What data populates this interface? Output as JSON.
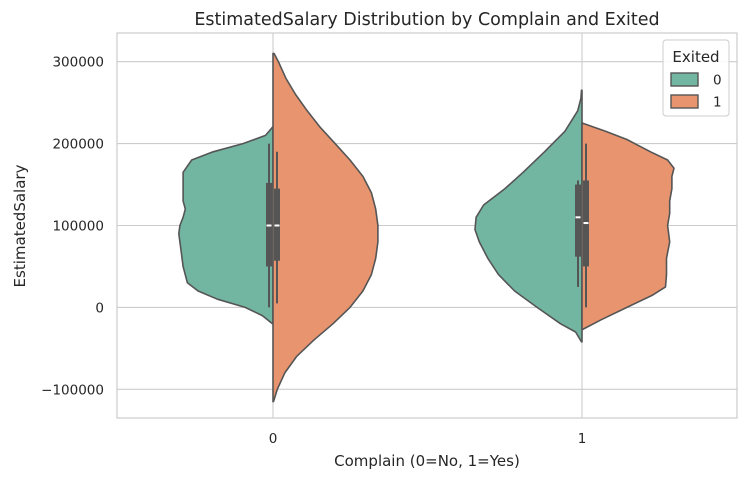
{
  "chart_data": {
    "type": "violin",
    "title": "EstimatedSalary Distribution by Complain and Exited",
    "xlabel": "Complain (0=No, 1=Yes)",
    "ylabel": "EstimatedSalary",
    "categories": [
      "0",
      "1"
    ],
    "ylim": [
      -135000,
      335000
    ],
    "yticks": [
      -100000,
      0,
      100000,
      200000,
      300000
    ],
    "ytick_labels": [
      "−100000",
      "0",
      "100000",
      "200000",
      "300000"
    ],
    "grid": true,
    "legend": {
      "title": "Exited",
      "placement": "top-right",
      "entries": [
        "0",
        "1"
      ]
    },
    "split": true,
    "series": [
      {
        "name": "0",
        "color": "#72b6a1",
        "side": "left",
        "violins": [
          {
            "category": "0",
            "y_min": -20000,
            "y_max": 220000,
            "profile": [
              [
                -20000,
                0.005
              ],
              [
                -10000,
                0.1
              ],
              [
                0,
                0.26
              ],
              [
                10000,
                0.52
              ],
              [
                20000,
                0.7
              ],
              [
                30000,
                0.8
              ],
              [
                50000,
                0.84
              ],
              [
                70000,
                0.86
              ],
              [
                90000,
                0.88
              ],
              [
                100000,
                0.87
              ],
              [
                110000,
                0.84
              ],
              [
                120000,
                0.82
              ],
              [
                130000,
                0.84
              ],
              [
                150000,
                0.84
              ],
              [
                165000,
                0.84
              ],
              [
                180000,
                0.76
              ],
              [
                190000,
                0.56
              ],
              [
                200000,
                0.28
              ],
              [
                210000,
                0.07
              ],
              [
                220000,
                0.005
              ]
            ],
            "box": {
              "q1": 50000,
              "median": 100000,
              "q3": 152000,
              "whisker_low": 0,
              "whisker_high": 200000
            }
          },
          {
            "category": "1",
            "y_min": -42000,
            "y_max": 265000,
            "profile": [
              [
                -42000,
                0.005
              ],
              [
                -30000,
                0.06
              ],
              [
                -20000,
                0.2
              ],
              [
                0,
                0.42
              ],
              [
                20000,
                0.63
              ],
              [
                40000,
                0.78
              ],
              [
                60000,
                0.88
              ],
              [
                80000,
                0.96
              ],
              [
                95000,
                1.0
              ],
              [
                110000,
                0.99
              ],
              [
                125000,
                0.92
              ],
              [
                145000,
                0.72
              ],
              [
                165000,
                0.55
              ],
              [
                190000,
                0.35
              ],
              [
                215000,
                0.16
              ],
              [
                240000,
                0.04
              ],
              [
                255000,
                0.01
              ],
              [
                265000,
                0.005
              ]
            ],
            "box": {
              "q1": 62000,
              "median": 110000,
              "q3": 150000,
              "whisker_low": 25000,
              "whisker_high": 155000
            }
          }
        ]
      },
      {
        "name": "1",
        "color": "#e8956f",
        "side": "right",
        "violins": [
          {
            "category": "0",
            "y_min": -115000,
            "y_max": 310000,
            "profile": [
              [
                -115000,
                0.005
              ],
              [
                -100000,
                0.04
              ],
              [
                -80000,
                0.11
              ],
              [
                -60000,
                0.22
              ],
              [
                -40000,
                0.38
              ],
              [
                -20000,
                0.56
              ],
              [
                0,
                0.72
              ],
              [
                20000,
                0.84
              ],
              [
                40000,
                0.92
              ],
              [
                60000,
                0.96
              ],
              [
                80000,
                0.98
              ],
              [
                100000,
                0.98
              ],
              [
                120000,
                0.96
              ],
              [
                140000,
                0.92
              ],
              [
                160000,
                0.84
              ],
              [
                180000,
                0.72
              ],
              [
                200000,
                0.58
              ],
              [
                220000,
                0.44
              ],
              [
                240000,
                0.32
              ],
              [
                260000,
                0.21
              ],
              [
                280000,
                0.12
              ],
              [
                300000,
                0.05
              ],
              [
                310000,
                0.01
              ]
            ],
            "box": {
              "q1": 57000,
              "median": 100000,
              "q3": 145000,
              "whisker_low": 5000,
              "whisker_high": 190000
            }
          },
          {
            "category": "1",
            "y_min": -27000,
            "y_max": 225000,
            "profile": [
              [
                -27000,
                0.005
              ],
              [
                -15000,
                0.18
              ],
              [
                0,
                0.42
              ],
              [
                15000,
                0.66
              ],
              [
                25000,
                0.78
              ],
              [
                40000,
                0.79
              ],
              [
                60000,
                0.79
              ],
              [
                80000,
                0.82
              ],
              [
                100000,
                0.8
              ],
              [
                115000,
                0.82
              ],
              [
                130000,
                0.82
              ],
              [
                145000,
                0.84
              ],
              [
                160000,
                0.84
              ],
              [
                170000,
                0.86
              ],
              [
                180000,
                0.8
              ],
              [
                190000,
                0.64
              ],
              [
                205000,
                0.42
              ],
              [
                215000,
                0.22
              ],
              [
                225000,
                0.005
              ]
            ],
            "box": {
              "q1": 50000,
              "median": 103000,
              "q3": 155000,
              "whisker_low": 0,
              "whisker_high": 200000
            }
          }
        ]
      }
    ]
  }
}
